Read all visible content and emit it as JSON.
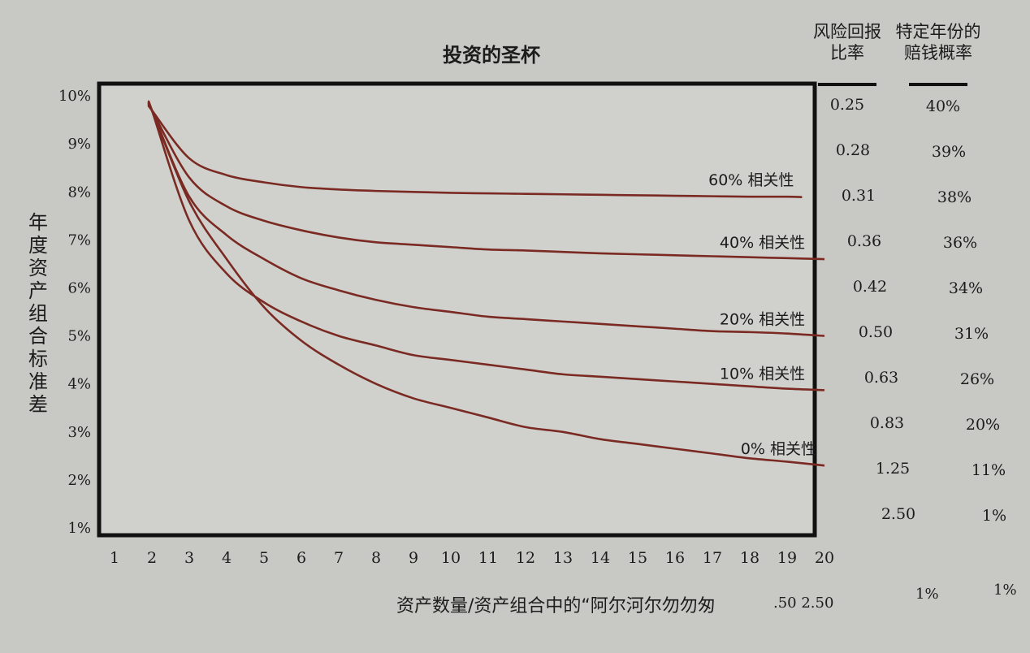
{
  "chart_data": {
    "type": "line",
    "title": "投资的圣杯",
    "ylabel": "年度资产组合标准差",
    "xlabel": "资产数量/资产组合中的“阿尔河尔勿勿匆",
    "x_ticks": [
      "1",
      "2",
      "3",
      "4",
      "5",
      "6",
      "7",
      "8",
      "9",
      "10",
      "11",
      "12",
      "13",
      "14",
      "15",
      "16",
      "17",
      "18",
      "19",
      "20"
    ],
    "y_ticks": [
      "10%",
      "9%",
      "8%",
      "7%",
      "6%",
      "5%",
      "4%",
      "3%",
      "2%",
      "1%"
    ],
    "xlim": [
      1,
      20
    ],
    "ylim": [
      1,
      10
    ],
    "grid": false,
    "line_color": "#7a2a22",
    "x": [
      2,
      3,
      4,
      5,
      6,
      7,
      8,
      9,
      10,
      11,
      12,
      13,
      14,
      15,
      16,
      17,
      18,
      19,
      20
    ],
    "series": [
      {
        "name": "60% 相关性",
        "values": [
          9.7,
          8.7,
          8.35,
          8.2,
          8.1,
          8.05,
          8.02,
          8.0,
          7.98,
          7.97,
          7.96,
          7.95,
          7.94,
          7.93,
          7.92,
          7.91,
          7.9,
          7.9,
          null
        ]
      },
      {
        "name": "40% 相关性",
        "values": [
          9.7,
          8.3,
          7.7,
          7.4,
          7.2,
          7.05,
          6.95,
          6.9,
          6.85,
          6.8,
          6.78,
          6.75,
          6.72,
          6.7,
          6.68,
          6.66,
          6.64,
          6.62,
          6.6
        ]
      },
      {
        "name": "20% 相关性",
        "values": [
          9.7,
          7.9,
          7.1,
          6.6,
          6.2,
          5.95,
          5.75,
          5.6,
          5.5,
          5.4,
          5.35,
          5.3,
          5.25,
          5.2,
          5.15,
          5.1,
          5.08,
          5.05,
          5.0
        ]
      },
      {
        "name": "10% 相关性",
        "values": [
          9.7,
          7.4,
          6.3,
          5.7,
          5.3,
          5.0,
          4.8,
          4.6,
          4.5,
          4.4,
          4.3,
          4.2,
          4.15,
          4.1,
          4.05,
          4.0,
          3.95,
          3.9,
          3.87
        ]
      },
      {
        "name": "0% 相关性",
        "values": [
          9.7,
          7.8,
          6.6,
          5.6,
          4.9,
          4.4,
          4.0,
          3.7,
          3.5,
          3.3,
          3.1,
          3.0,
          2.85,
          2.75,
          2.65,
          2.55,
          2.45,
          2.38,
          2.3
        ]
      }
    ],
    "side_table": {
      "headers": [
        "风险回报比率",
        "特定年份的赔钱概率"
      ],
      "header_lines": [
        [
          "风险回报",
          "比率"
        ],
        [
          "特定年份的",
          "赔钱概率"
        ]
      ],
      "rows": [
        [
          "0.25",
          "40%"
        ],
        [
          "0.28",
          "39%"
        ],
        [
          "0.31",
          "38%"
        ],
        [
          "0.36",
          "36%"
        ],
        [
          "0.42",
          "34%"
        ],
        [
          "0.50",
          "31%"
        ],
        [
          "0.63",
          "26%"
        ],
        [
          "0.83",
          "20%"
        ],
        [
          "1.25",
          "11%"
        ],
        [
          "2.50",
          "1%"
        ]
      ]
    },
    "stray_text": [
      ".50 2.50",
      "1%",
      "1%"
    ]
  }
}
